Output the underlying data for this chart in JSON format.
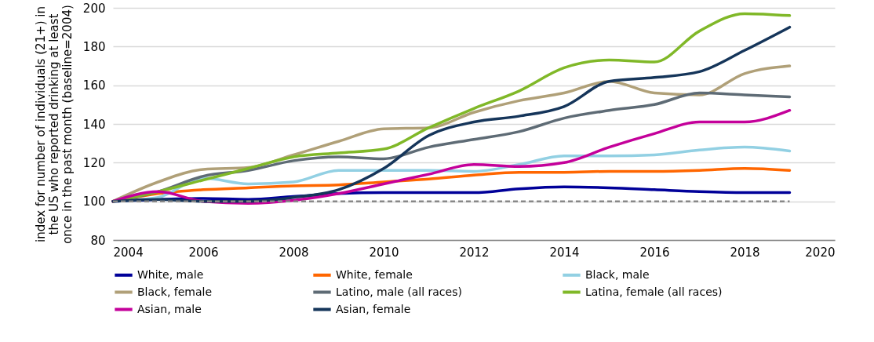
{
  "chart_data": {
    "type": "line",
    "ylabel": "index for number of individuals (21+) in the US who reported drinking at least once in the past month (baseline=2004)",
    "x": [
      2004,
      2005,
      2006,
      2007,
      2008,
      2009,
      2010,
      2011,
      2012,
      2013,
      2014,
      2015,
      2016,
      2017,
      2018,
      2019
    ],
    "series": [
      {
        "name": "White, male",
        "color": "#000099",
        "values": [
          100,
          101,
          101.5,
          101,
          102.5,
          104,
          104.5,
          104.5,
          104.5,
          106.5,
          107.5,
          107,
          106,
          105,
          104.5,
          104.5
        ]
      },
      {
        "name": "White, female",
        "color": "#ff6600",
        "values": [
          100,
          104,
          106,
          107,
          108,
          108.5,
          110,
          111.5,
          113.5,
          115,
          115,
          115.5,
          115.5,
          116,
          117,
          116
        ]
      },
      {
        "name": "Black, male",
        "color": "#92d0e3",
        "values": [
          100,
          102,
          112,
          109,
          110,
          116,
          116,
          116,
          115.5,
          119,
          123.5,
          123.5,
          124,
          126.5,
          128,
          126
        ]
      },
      {
        "name": "Black, female",
        "color": "#b0a078",
        "values": [
          100,
          110,
          116.5,
          117.5,
          124,
          131,
          137.5,
          138,
          146,
          152,
          156,
          162,
          156,
          155,
          166,
          170
        ]
      },
      {
        "name": "Latino, male (all races)",
        "color": "#5e6b75",
        "values": [
          100,
          105,
          113,
          116,
          121,
          123,
          122,
          128,
          132,
          136,
          143,
          147,
          150,
          156,
          155,
          154
        ]
      },
      {
        "name": "Latina, female (all races)",
        "color": "#80b828",
        "values": [
          100,
          105,
          111,
          117,
          123,
          125,
          127,
          138,
          148,
          157,
          169,
          173,
          172,
          188,
          197,
          196
        ]
      },
      {
        "name": "Asian, male",
        "color": "#c4009a",
        "values": [
          100,
          105,
          100,
          99,
          100.5,
          104,
          109,
          114,
          119,
          118,
          120,
          128,
          135,
          141,
          141,
          147
        ]
      },
      {
        "name": "Asian, female",
        "color": "#15355a",
        "values": [
          100,
          101,
          100,
          100,
          102,
          106,
          117,
          134,
          141,
          144,
          149,
          162,
          164,
          167,
          178,
          190
        ]
      }
    ],
    "xlim": [
      2004,
      2020
    ],
    "xticks": [
      2004,
      2006,
      2008,
      2010,
      2012,
      2014,
      2016,
      2018,
      2020
    ],
    "ylim": [
      80,
      200
    ],
    "yticks": [
      80,
      100,
      120,
      140,
      160,
      180,
      200
    ],
    "ref_lines": [
      {
        "axis": "y",
        "value": 100,
        "color": "#888888",
        "line_style": "dashed"
      }
    ],
    "grid": "y",
    "legend": "bottom",
    "line_style": "solid",
    "marker": "none"
  }
}
